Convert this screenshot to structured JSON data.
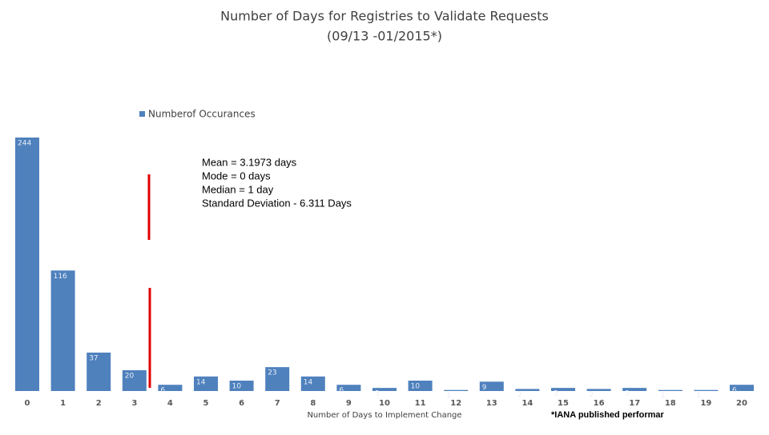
{
  "chart_data": {
    "type": "bar",
    "title": "Number of Days for Registries to Validate Requests",
    "subtitle": "(09/13 -01/2015*)",
    "categories": [
      "0",
      "1",
      "2",
      "3",
      "4",
      "5",
      "6",
      "7",
      "8",
      "9",
      "10",
      "11",
      "12",
      "13",
      "14",
      "15",
      "16",
      "17",
      "18",
      "19",
      "20"
    ],
    "series": [
      {
        "name": "Numberof Occurances",
        "color": "#4f81bd",
        "values": [
          244,
          116,
          37,
          20,
          6,
          14,
          10,
          23,
          14,
          6,
          3,
          10,
          1,
          9,
          2,
          3,
          2,
          3,
          1,
          1,
          6
        ]
      }
    ],
    "ylim": [
      0,
      244
    ],
    "xlabel": "Number of Days to Implement Change",
    "annotations": [
      "Mean = 3.1973 days",
      "Mode = 0 days",
      "Median = 1 day",
      "Standard Deviation - 6.311 Days"
    ],
    "footnote": "*IANA published performar"
  }
}
